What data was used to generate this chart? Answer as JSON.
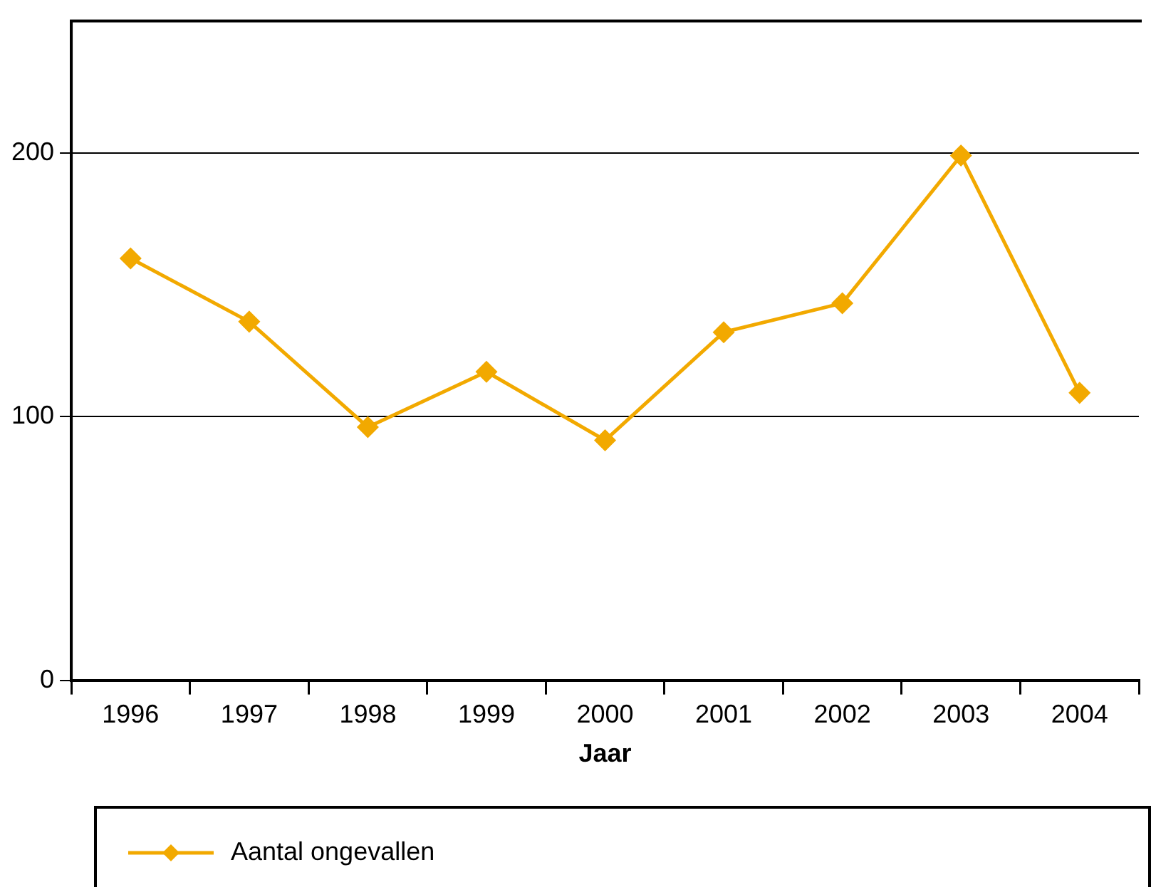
{
  "chart_data": {
    "type": "line",
    "xlabel": "Jaar",
    "categories": [
      "1996",
      "1997",
      "1998",
      "1999",
      "2000",
      "2001",
      "2002",
      "2003",
      "2004"
    ],
    "series": [
      {
        "name": "Aantal ongevallen",
        "color": "#f2a900",
        "values": [
          160,
          136,
          96,
          117,
          91,
          132,
          143,
          199,
          109
        ]
      }
    ],
    "ylim": [
      0,
      250
    ],
    "yticks": [
      0,
      100,
      200
    ],
    "grid": "y",
    "legend": "bottom",
    "marker": "diamond",
    "line_style": "solid"
  }
}
